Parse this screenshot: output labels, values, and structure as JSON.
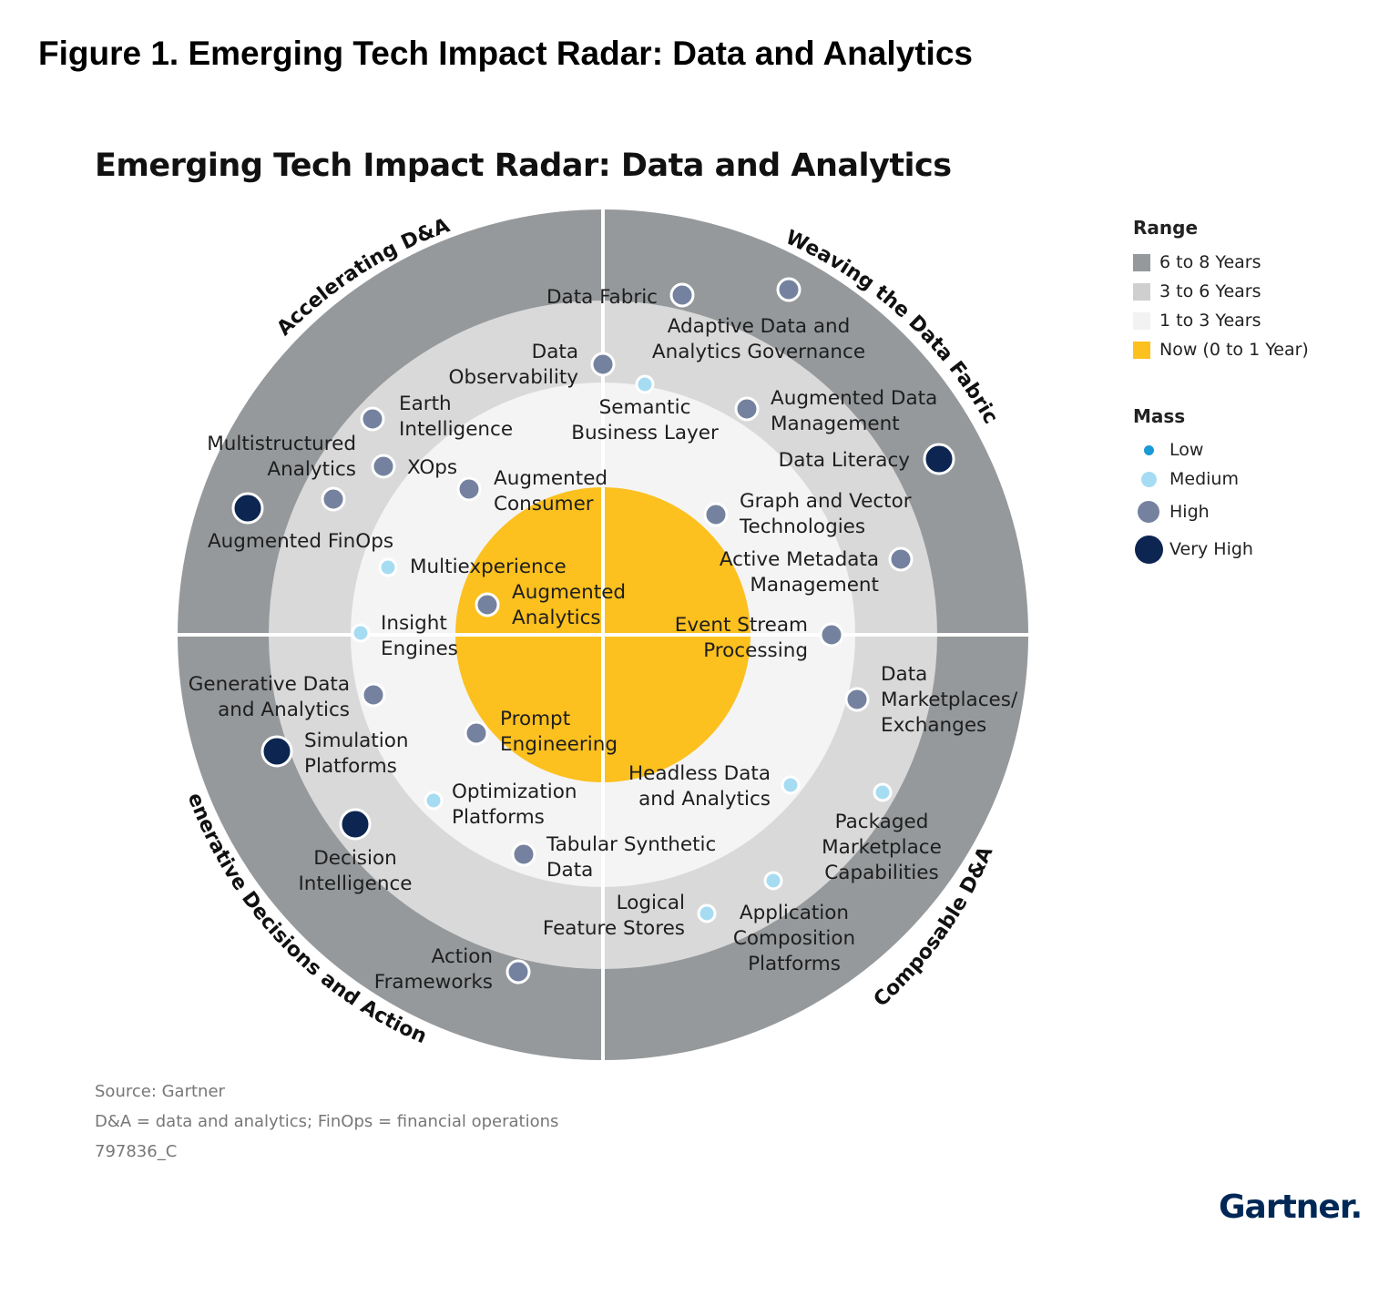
{
  "figure_title": "Figure 1. Emerging Tech Impact Radar: Data and Analytics",
  "chart_title": "Emerging Tech Impact Radar: Data and Analytics",
  "colors": {
    "ring_6_8": "#96999b",
    "ring_3_6": "#d9d9d9",
    "ring_1_3": "#f4f4f4",
    "ring_now": "#fcc01f",
    "mass_low": "#1a9ad6",
    "mass_medium": "#a6dcf2",
    "mass_high": "#75829f",
    "mass_very_high": "#0c2551"
  },
  "legend": {
    "range_title": "Range",
    "range_items": [
      {
        "key": "6-8",
        "label": "6 to 8 Years",
        "color": "#96999b"
      },
      {
        "key": "3-6",
        "label": "3 to 6 Years",
        "color": "#cfcfcf"
      },
      {
        "key": "1-3",
        "label": "1 to 3 Years",
        "color": "#f2f2f2"
      },
      {
        "key": "now",
        "label": "Now (0 to 1 Year)",
        "color": "#fcc01f"
      }
    ],
    "mass_title": "Mass",
    "mass_items": [
      {
        "key": "low",
        "label": "Low"
      },
      {
        "key": "medium",
        "label": "Medium"
      },
      {
        "key": "high",
        "label": "High"
      },
      {
        "key": "very_high",
        "label": "Very High"
      }
    ]
  },
  "chart_data": {
    "type": "radar",
    "title": "Emerging Tech Impact Radar: Data and Analytics",
    "range_rings": [
      "Now (0 to 1 Year)",
      "1 to 3 Years",
      "3 to 6 Years",
      "6 to 8 Years"
    ],
    "themes": [
      {
        "name": "Accelerating D&A",
        "quadrant": "top-left"
      },
      {
        "name": "Weaving the Data Fabric",
        "quadrant": "top-right"
      },
      {
        "name": "Composable D&A",
        "quadrant": "bottom-right"
      },
      {
        "name": "Generative Decisions and Actions",
        "quadrant": "bottom-left"
      }
    ],
    "technologies": [
      {
        "name": "Augmented FinOps",
        "lines": [
          "Augmented FinOps"
        ],
        "theme": "Accelerating D&A",
        "range": "6 to 8 Years",
        "mass": "very_high"
      },
      {
        "name": "Multistructured Analytics",
        "lines": [
          "Multistructured",
          "Analytics"
        ],
        "theme": "Accelerating D&A",
        "range": "3 to 6 Years",
        "mass": "high"
      },
      {
        "name": "Earth Intelligence",
        "lines": [
          "Earth",
          "Intelligence"
        ],
        "theme": "Accelerating D&A",
        "range": "3 to 6 Years",
        "mass": "high"
      },
      {
        "name": "XOps",
        "lines": [
          "XOps"
        ],
        "theme": "Accelerating D&A",
        "range": "3 to 6 Years",
        "mass": "high"
      },
      {
        "name": "Data Observability",
        "lines": [
          "Data",
          "Observability"
        ],
        "theme": "Accelerating D&A",
        "range": "3 to 6 Years",
        "mass": "high"
      },
      {
        "name": "Augmented Consumer",
        "lines": [
          "Augmented",
          "Consumer"
        ],
        "theme": "Accelerating D&A",
        "range": "1 to 3 Years",
        "mass": "high"
      },
      {
        "name": "Multiexperience",
        "lines": [
          "Multiexperience"
        ],
        "theme": "Accelerating D&A",
        "range": "1 to 3 Years",
        "mass": "medium"
      },
      {
        "name": "Insight Engines",
        "lines": [
          "Insight",
          "Engines"
        ],
        "theme": "Accelerating D&A",
        "range": "1 to 3 Years",
        "mass": "medium"
      },
      {
        "name": "Augmented Analytics",
        "lines": [
          "Augmented",
          "Analytics"
        ],
        "theme": "Accelerating D&A",
        "range": "Now (0 to 1 Year)",
        "mass": "high"
      },
      {
        "name": "Data Fabric",
        "lines": [
          "Data Fabric"
        ],
        "theme": "Weaving the Data Fabric",
        "range": "6 to 8 Years",
        "mass": "high"
      },
      {
        "name": "Adaptive Data and Analytics Governance",
        "lines": [
          "Adaptive Data and",
          "Analytics Governance"
        ],
        "theme": "Weaving the Data Fabric",
        "range": "6 to 8 Years",
        "mass": "high"
      },
      {
        "name": "Data Literacy",
        "lines": [
          "Data Literacy"
        ],
        "theme": "Weaving the Data Fabric",
        "range": "6 to 8 Years",
        "mass": "very_high"
      },
      {
        "name": "Augmented Data Management",
        "lines": [
          "Augmented Data",
          "Management"
        ],
        "theme": "Weaving the Data Fabric",
        "range": "3 to 6 Years",
        "mass": "high"
      },
      {
        "name": "Active Metadata Management",
        "lines": [
          "Active Metadata",
          "Management"
        ],
        "theme": "Weaving the Data Fabric",
        "range": "3 to 6 Years",
        "mass": "high"
      },
      {
        "name": "Semantic Business Layer",
        "lines": [
          "Semantic",
          "Business Layer"
        ],
        "theme": "Weaving the Data Fabric",
        "range": "1 to 3 Years",
        "mass": "medium"
      },
      {
        "name": "Graph and Vector Technologies",
        "lines": [
          "Graph and Vector",
          "Technologies"
        ],
        "theme": "Weaving the Data Fabric",
        "range": "1 to 3 Years",
        "mass": "high"
      },
      {
        "name": "Event Stream Processing",
        "lines": [
          "Event Stream",
          "Processing"
        ],
        "theme": "Weaving the Data Fabric",
        "range": "3 to 6 Years",
        "mass": "high"
      },
      {
        "name": "Data Marketplaces/ Exchanges",
        "lines": [
          "Data",
          "Marketplaces/",
          "Exchanges"
        ],
        "theme": "Composable D&A",
        "range": "3 to 6 Years",
        "mass": "high"
      },
      {
        "name": "Packaged Marketplace Capabilities",
        "lines": [
          "Packaged",
          "Marketplace",
          "Capabilities"
        ],
        "theme": "Composable D&A",
        "range": "3 to 6 Years",
        "mass": "medium"
      },
      {
        "name": "Application Composition Platforms",
        "lines": [
          "Application",
          "Composition",
          "Platforms"
        ],
        "theme": "Composable D&A",
        "range": "3 to 6 Years",
        "mass": "medium"
      },
      {
        "name": "Logical Feature Stores",
        "lines": [
          "Logical",
          "Feature Stores"
        ],
        "theme": "Composable D&A",
        "range": "3 to 6 Years",
        "mass": "medium"
      },
      {
        "name": "Headless Data and Analytics",
        "lines": [
          "Headless Data",
          "and Analytics"
        ],
        "theme": "Composable D&A",
        "range": "1 to 3 Years",
        "mass": "medium"
      },
      {
        "name": "Generative Data and Analytics",
        "lines": [
          "Generative Data",
          "and Analytics"
        ],
        "theme": "Generative Decisions and Actions",
        "range": "3 to 6 Years",
        "mass": "high"
      },
      {
        "name": "Simulation Platforms",
        "lines": [
          "Simulation",
          "Platforms"
        ],
        "theme": "Generative Decisions and Actions",
        "range": "6 to 8 Years",
        "mass": "very_high"
      },
      {
        "name": "Decision Intelligence",
        "lines": [
          "Decision",
          "Intelligence"
        ],
        "theme": "Generative Decisions and Actions",
        "range": "6 to 8 Years",
        "mass": "very_high"
      },
      {
        "name": "Action Frameworks",
        "lines": [
          "Action",
          "Frameworks"
        ],
        "theme": "Generative Decisions and Actions",
        "range": "3 to 6 Years",
        "mass": "high"
      },
      {
        "name": "Prompt Engineering",
        "lines": [
          "Prompt",
          "Engineering"
        ],
        "theme": "Generative Decisions and Actions",
        "range": "Now (0 to 1 Year)",
        "mass": "high"
      },
      {
        "name": "Optimization Platforms",
        "lines": [
          "Optimization",
          "Platforms"
        ],
        "theme": "Generative Decisions and Actions",
        "range": "1 to 3 Years",
        "mass": "medium"
      },
      {
        "name": "Tabular Synthetic Data",
        "lines": [
          "Tabular Synthetic",
          "Data"
        ],
        "theme": "Generative Decisions and Actions",
        "range": "1 to 3 Years",
        "mass": "high"
      }
    ]
  },
  "notes": {
    "source": "Source: Gartner",
    "abbrev": "D&A = data and analytics; FinOps = financial operations",
    "id": "797836_C"
  },
  "logo_text": "Gartner."
}
